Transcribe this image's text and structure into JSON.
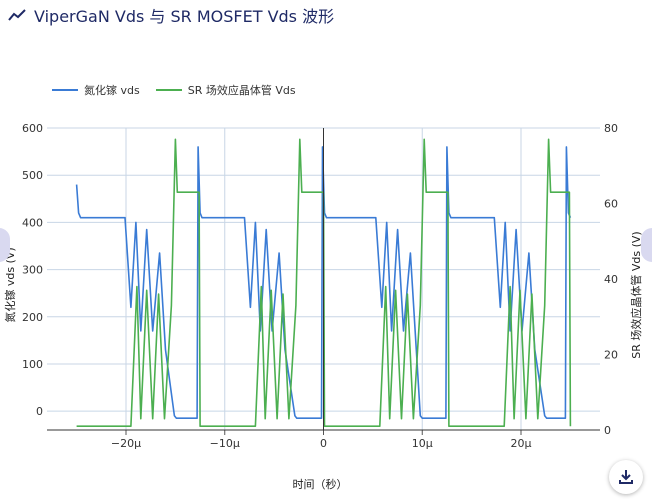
{
  "title": "ViperGaN Vds 与 SR MOSFET Vds 波形",
  "colors": {
    "gan": "#3a7bd5",
    "sr": "#4caf50",
    "grid": "#c8d6e6",
    "title": "#1f2a66"
  },
  "icons": {
    "title": "line-chart-icon",
    "download": "download-icon"
  },
  "chart_data": {
    "type": "line",
    "title": "ViperGaN Vds 与 SR MOSFET Vds 波形",
    "xlabel": "时间（秒）",
    "ylabel_left": "氮化镓 vds (V)",
    "ylabel_right": "SR 场效应晶体管 Vds (V)",
    "xlim": [
      -2.8e-05,
      2.8e-05
    ],
    "ylim_left": [
      -40,
      600
    ],
    "ylim_right": [
      0,
      80
    ],
    "x_ticks": [
      {
        "value": -2e-05,
        "label": "−20μ"
      },
      {
        "value": -1e-05,
        "label": "−10μ"
      },
      {
        "value": 0,
        "label": "0"
      },
      {
        "value": 1e-05,
        "label": "10μ"
      },
      {
        "value": 2e-05,
        "label": "20μ"
      }
    ],
    "y_left_ticks": [
      0,
      100,
      200,
      300,
      400,
      500,
      600
    ],
    "y_right_ticks": [
      0,
      20,
      40,
      60,
      80
    ],
    "grid": true,
    "legend_position": "top-left",
    "series": [
      {
        "name": "氮化镓 vds",
        "axis": "left",
        "color": "#3a7bd5",
        "x": [
          -2.5e-05,
          -2.48e-05,
          -2.46e-05,
          -2.01e-05,
          -1.95e-05,
          -1.9e-05,
          -1.85e-05,
          -1.79e-05,
          -1.73e-05,
          -1.66e-05,
          -1.6e-05,
          -1.51e-05,
          -1.49e-05,
          -1.47e-05,
          -1.28e-05,
          -1.27e-05,
          -1.25e-05,
          -1.23e-05,
          -8e-06,
          -7.4e-06,
          -6.9e-06,
          -6.4e-06,
          -5.8e-06,
          -5.2e-06,
          -4.5e-06,
          -3.9e-06,
          -2.9e-06,
          -2.7e-06,
          -2.5e-06,
          -2e-07,
          -1e-07,
          1e-07,
          3e-07,
          5.3e-06,
          5.9e-06,
          6.4e-06,
          6.9e-06,
          7.5e-06,
          8.1e-06,
          8.8e-06,
          9.4e-06,
          9.8e-06,
          1e-05,
          1.02e-05,
          1.24e-05,
          1.25e-05,
          1.27e-05,
          1.29e-05,
          1.73e-05,
          1.79e-05,
          1.84e-05,
          1.89e-05,
          1.95e-05,
          2.01e-05,
          2.08e-05,
          2.14e-05,
          2.24e-05,
          2.26e-05,
          2.28e-05,
          2.45e-05,
          2.46e-05,
          2.48e-05,
          2.5e-05
        ],
        "y": [
          480,
          420,
          410,
          410,
          220,
          400,
          170,
          385,
          170,
          335,
          130,
          -10,
          -15,
          -15,
          -15,
          560,
          420,
          410,
          410,
          220,
          400,
          170,
          385,
          170,
          335,
          130,
          -10,
          -15,
          -15,
          -15,
          560,
          420,
          410,
          410,
          220,
          400,
          170,
          385,
          170,
          335,
          130,
          -10,
          -15,
          -15,
          -15,
          560,
          420,
          410,
          410,
          220,
          400,
          170,
          385,
          170,
          335,
          130,
          -10,
          -15,
          -15,
          -15,
          560,
          420,
          410
        ]
      },
      {
        "name": "SR 场效应晶体管 Vds",
        "axis": "right",
        "color": "#4caf50",
        "x": [
          -2.5e-05,
          -1.95e-05,
          -1.89e-05,
          -1.85e-05,
          -1.79e-05,
          -1.73e-05,
          -1.67e-05,
          -1.61e-05,
          -1.54e-05,
          -1.5e-05,
          -1.48e-05,
          -1.46e-05,
          -1.26e-05,
          -1.25e-05,
          -6.9e-06,
          -6.3e-06,
          -5.9e-06,
          -5.3e-06,
          -4.7e-06,
          -4.1e-06,
          -3.5e-06,
          -2.8e-06,
          -2.4e-06,
          -2.2e-06,
          -2e-06,
          0.0,
          1e-07,
          5.7e-06,
          6.3e-06,
          6.7e-06,
          7.3e-06,
          7.9e-06,
          8.5e-06,
          9.1e-06,
          9.8e-06,
          1.02e-05,
          1.04e-05,
          1.06e-05,
          1.26e-05,
          1.27e-05,
          1.83e-05,
          1.89e-05,
          1.93e-05,
          1.99e-05,
          2.05e-05,
          2.11e-05,
          2.17e-05,
          2.24e-05,
          2.28e-05,
          2.3e-05,
          2.32e-05,
          2.49e-05,
          2.5e-05
        ],
        "y": [
          1,
          1,
          38,
          3,
          37,
          3,
          36,
          3,
          33,
          77,
          63,
          63,
          63,
          1,
          1,
          38,
          3,
          37,
          3,
          36,
          3,
          33,
          77,
          63,
          63,
          63,
          1,
          1,
          38,
          3,
          37,
          3,
          36,
          3,
          33,
          77,
          63,
          63,
          63,
          1,
          1,
          38,
          3,
          37,
          3,
          36,
          3,
          33,
          77,
          63,
          63,
          63,
          1
        ]
      }
    ]
  }
}
